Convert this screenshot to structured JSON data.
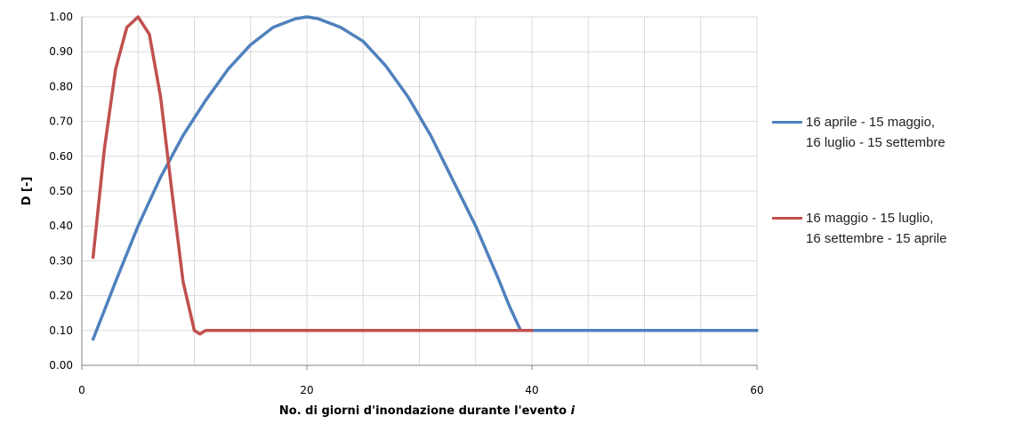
{
  "chart_data": {
    "type": "line",
    "x_label": "No. di giorni d'inondazione durante l'evento",
    "x_label_var": "i",
    "y_label": "D [-]",
    "xlim": [
      0,
      60
    ],
    "xticks": [
      0,
      20,
      40,
      60
    ],
    "xgrid": [
      0,
      5,
      10,
      15,
      20,
      25,
      30,
      35,
      40,
      45,
      50,
      55,
      60
    ],
    "ylim": [
      0,
      1
    ],
    "yticks": [
      {
        "value": 0,
        "label": "0.00"
      },
      {
        "value": 0.1,
        "label": "0.10"
      },
      {
        "value": 0.2,
        "label": "0.20"
      },
      {
        "value": 0.3,
        "label": "0.30"
      },
      {
        "value": 0.4,
        "label": "0.40"
      },
      {
        "value": 0.5,
        "label": "0.50"
      },
      {
        "value": 0.6,
        "label": "0.60"
      },
      {
        "value": 0.7,
        "label": "0.70"
      },
      {
        "value": 0.8,
        "label": "0.80"
      },
      {
        "value": 0.9,
        "label": "0.90"
      },
      {
        "value": 1,
        "label": "1.00"
      }
    ],
    "grid": true,
    "series": [
      {
        "name": "16 aprile - 15 maggio,\n16 luglio - 15 settembre",
        "color": "#4f81bd",
        "x": [
          1,
          3,
          5,
          7,
          9,
          11,
          13,
          15,
          17,
          19,
          20,
          21,
          23,
          25,
          27,
          29,
          31,
          33,
          35,
          37,
          38,
          39,
          40,
          60
        ],
        "values": [
          0.075,
          0.24,
          0.4,
          0.54,
          0.66,
          0.76,
          0.85,
          0.92,
          0.97,
          0.995,
          1.0,
          0.995,
          0.97,
          0.93,
          0.86,
          0.77,
          0.66,
          0.53,
          0.4,
          0.25,
          0.17,
          0.1,
          0.1,
          0.1
        ]
      },
      {
        "name": "16 maggio - 15 luglio,\n16 settembre - 15 aprile",
        "color": "#c0504d",
        "x": [
          1,
          2,
          3,
          4,
          5,
          6,
          7,
          8,
          9,
          10,
          10.5,
          11,
          40
        ],
        "values": [
          0.31,
          0.62,
          0.85,
          0.97,
          1.0,
          0.95,
          0.77,
          0.5,
          0.24,
          0.1,
          0.09,
          0.1,
          0.1
        ]
      }
    ]
  }
}
